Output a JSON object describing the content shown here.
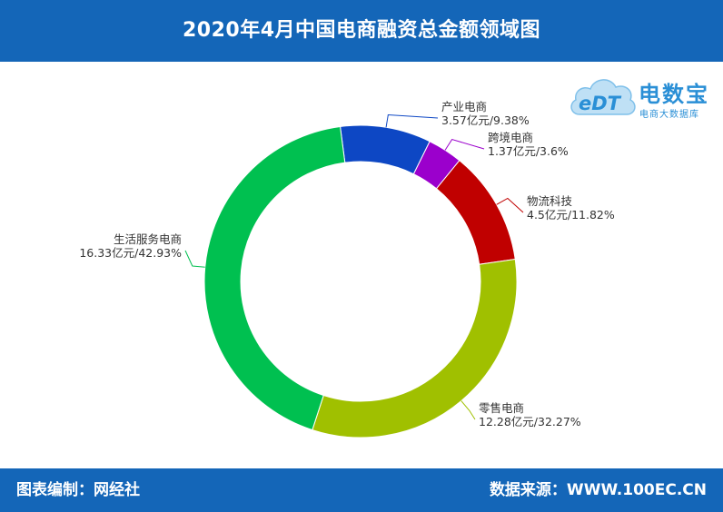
{
  "header": {
    "title": "2020年4月中国电商融资总金额领域图"
  },
  "footer": {
    "left": "图表编制：网经社",
    "right": "数据来源：WWW.100EC.CN"
  },
  "logo": {
    "mark": "eDT",
    "name": "电数宝",
    "tagline": "电商大数据库",
    "color": "#2a8fd6"
  },
  "chart_data": {
    "type": "pie",
    "variant": "donut",
    "title": "2020年4月中国电商融资总金额领域图",
    "unit": "亿元",
    "slices": [
      {
        "name": "产业电商",
        "value": 3.57,
        "percent": 9.38,
        "label": "3.57亿元/9.38%",
        "color": "#0d47c4"
      },
      {
        "name": "跨境电商",
        "value": 1.37,
        "percent": 3.6,
        "label": "1.37亿元/3.6%",
        "color": "#9b00cc"
      },
      {
        "name": "物流科技",
        "value": 4.5,
        "percent": 11.82,
        "label": "4.5亿元/11.82%",
        "color": "#c00000"
      },
      {
        "name": "零售电商",
        "value": 12.28,
        "percent": 32.27,
        "label": "12.28亿元/32.27%",
        "color": "#a0c000"
      },
      {
        "name": "生活服务电商",
        "value": 16.33,
        "percent": 42.93,
        "label": "16.33亿元/42.93%",
        "color": "#00c050"
      }
    ]
  }
}
